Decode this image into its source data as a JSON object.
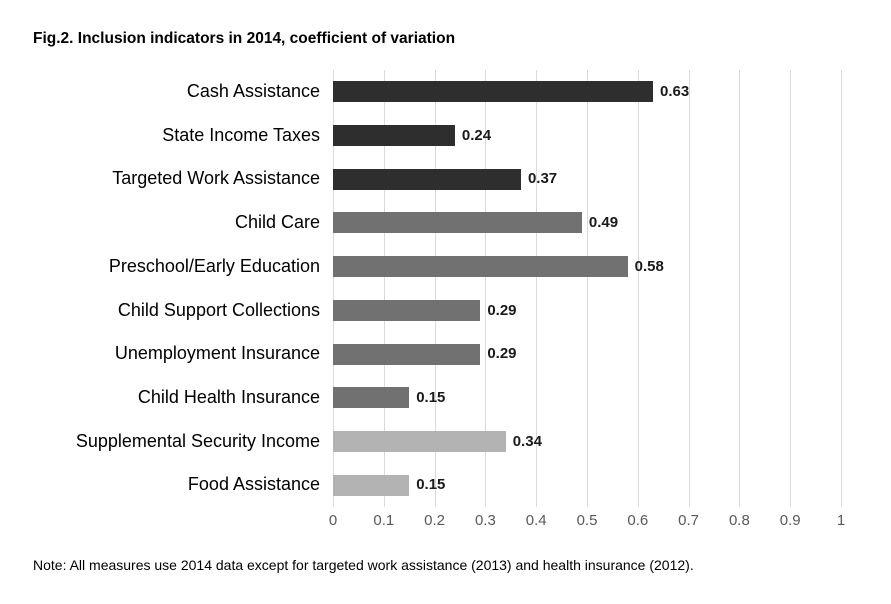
{
  "title": "Fig.2. Inclusion indicators in 2014, coefficient of variation",
  "note": "Note: All measures use 2014 data except for targeted work assistance (2013) and health insurance (2012).",
  "chart_data": {
    "type": "bar",
    "orientation": "horizontal",
    "title": "Fig.2. Inclusion indicators in 2014, coefficient of variation",
    "categories": [
      "Cash Assistance",
      "State Income Taxes",
      "Targeted Work Assistance",
      "Child Care",
      "Preschool/Early Education",
      "Child Support Collections",
      "Unemployment Insurance",
      "Child Health Insurance",
      "Supplemental Security Income",
      "Food Assistance"
    ],
    "values": [
      0.63,
      0.24,
      0.37,
      0.49,
      0.58,
      0.29,
      0.29,
      0.15,
      0.34,
      0.15
    ],
    "value_labels": [
      "0.63",
      "0.24",
      "0.37",
      "0.49",
      "0.58",
      "0.29",
      "0.29",
      "0.15",
      "0.34",
      "0.15"
    ],
    "bar_colors": [
      "#2e2e2e",
      "#2e2e2e",
      "#2e2e2e",
      "#717171",
      "#717171",
      "#717171",
      "#717171",
      "#717171",
      "#b3b3b3",
      "#b3b3b3"
    ],
    "xlabel": "",
    "ylabel": "",
    "xlim": [
      0,
      1
    ],
    "x_ticks": [
      "0",
      "0.1",
      "0.2",
      "0.3",
      "0.4",
      "0.5",
      "0.6",
      "0.7",
      "0.8",
      "0.9",
      "1"
    ],
    "grid": true,
    "gridline_color": "#d9d9d9",
    "tick_label_color": "#595959",
    "legend": "none"
  }
}
